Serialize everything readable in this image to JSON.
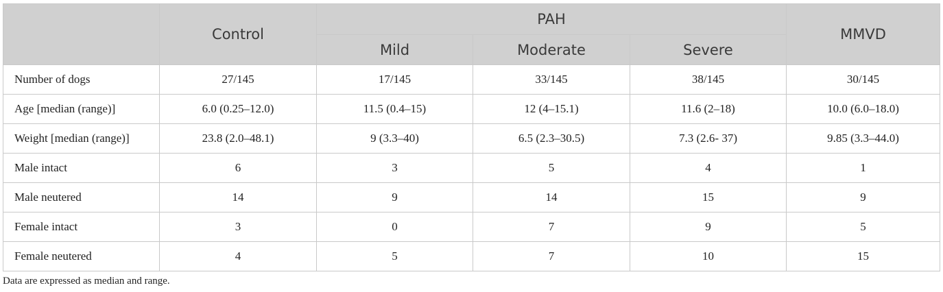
{
  "header": {
    "control": "Control",
    "pah": "PAH",
    "mmvd": "MMVD",
    "mild": "Mild",
    "moderate": "Moderate",
    "severe": "Severe"
  },
  "rows": [
    {
      "label": "Number of dogs",
      "cells": [
        "27/145",
        "17/145",
        "33/145",
        "38/145",
        "30/145"
      ]
    },
    {
      "label": "Age [median (range)]",
      "cells": [
        "6.0 (0.25–12.0)",
        "11.5 (0.4–15)",
        "12 (4–15.1)",
        "11.6 (2–18)",
        "10.0 (6.0–18.0)"
      ]
    },
    {
      "label": "Weight [median (range)]",
      "cells": [
        "23.8 (2.0–48.1)",
        "9 (3.3–40)",
        "6.5 (2.3–30.5)",
        "7.3 (2.6- 37)",
        "9.85 (3.3–44.0)"
      ]
    },
    {
      "label": "Male intact",
      "cells": [
        "6",
        "3",
        "5",
        "4",
        "1"
      ]
    },
    {
      "label": "Male neutered",
      "cells": [
        "14",
        "9",
        "14",
        "15",
        "9"
      ]
    },
    {
      "label": "Female intact",
      "cells": [
        "3",
        "0",
        "7",
        "9",
        "5"
      ]
    },
    {
      "label": "Female neutered",
      "cells": [
        "4",
        "5",
        "7",
        "10",
        "15"
      ]
    }
  ],
  "footnote": "Data are expressed as median and range."
}
